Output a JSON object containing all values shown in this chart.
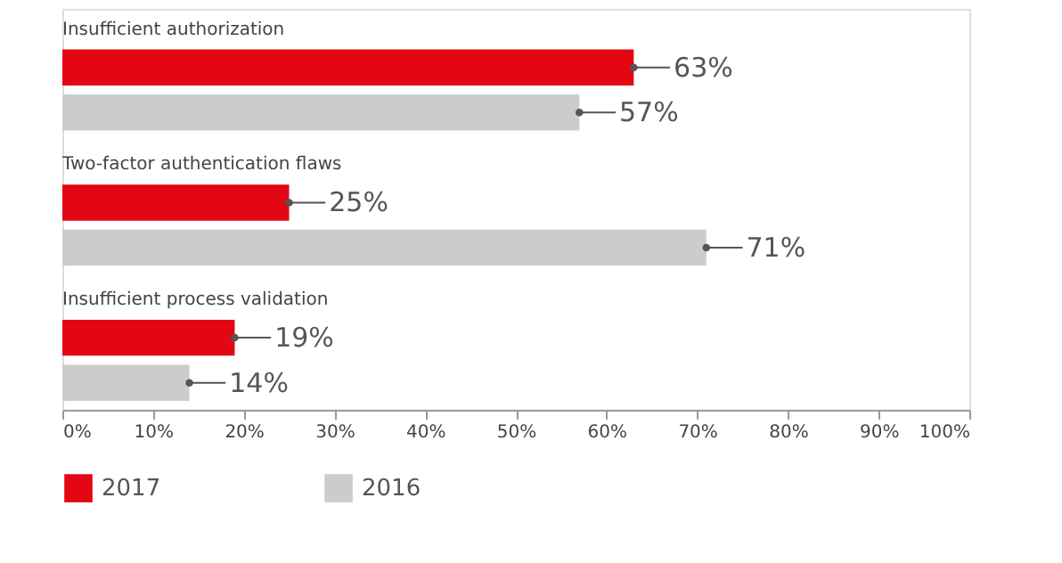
{
  "chart_data": {
    "type": "bar",
    "orientation": "horizontal",
    "categories": [
      "Insufficient authorization",
      "Two-factor authentication flaws",
      "Insufficient process validation"
    ],
    "series": [
      {
        "name": "2017",
        "color": "#e30613",
        "values": [
          63,
          25,
          19
        ],
        "value_labels": [
          "63%",
          "25%",
          "19%"
        ]
      },
      {
        "name": "2016",
        "color": "#cccccc",
        "values": [
          57,
          71,
          14
        ],
        "value_labels": [
          "57%",
          "71%",
          "14%"
        ]
      }
    ],
    "xlim": [
      0,
      100
    ],
    "xticks": [
      {
        "value": 0,
        "label": "0%"
      },
      {
        "value": 10,
        "label": "10%"
      },
      {
        "value": 20,
        "label": "20%"
      },
      {
        "value": 30,
        "label": "30%"
      },
      {
        "value": 40,
        "label": "40%"
      },
      {
        "value": 50,
        "label": "50%"
      },
      {
        "value": 60,
        "label": "60%"
      },
      {
        "value": 70,
        "label": "70%"
      },
      {
        "value": 80,
        "label": "80%"
      },
      {
        "value": 90,
        "label": "90%"
      },
      {
        "value": 100,
        "label": "100%"
      }
    ],
    "grid": false,
    "legend": "bottom"
  }
}
